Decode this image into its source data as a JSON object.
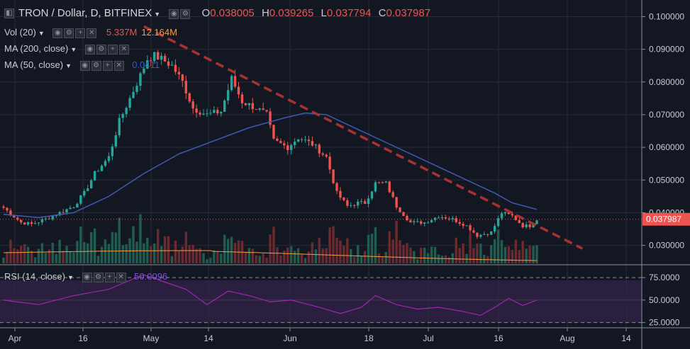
{
  "header": {
    "symbol": "TRON / Dollar, D, BITFINEX",
    "open_label": "O",
    "open": "0.038005",
    "high_label": "H",
    "high": "0.039265",
    "low_label": "L",
    "low": "0.037794",
    "close_label": "C",
    "close": "0.037987"
  },
  "indicators": {
    "vol": {
      "label": "Vol (20)",
      "value1": "5.337M",
      "value2": "12.164M"
    },
    "ma200": {
      "label": "MA (200, close)"
    },
    "ma50": {
      "label": "MA (50, close)",
      "value": "0.0411"
    },
    "rsi": {
      "label": "RSI (14, close)",
      "value": "50.0096"
    }
  },
  "colors": {
    "background": "#131722",
    "up": "#26a69a",
    "down": "#ef5350",
    "ma50": "#3e5bb3",
    "vol_ma": "#f59b42",
    "rsi": "#9c27b0",
    "trendline": "#a83232"
  },
  "chart_data": {
    "type": "candlestick",
    "price_axis": {
      "ticks": [
        "0.100000",
        "0.090000",
        "0.080000",
        "0.070000",
        "0.060000",
        "0.050000",
        "0.040000",
        "0.030000"
      ],
      "tick_values": [
        0.1,
        0.09,
        0.08,
        0.07,
        0.06,
        0.05,
        0.04,
        0.03
      ],
      "range": [
        0.0245,
        0.104
      ]
    },
    "last_price_label": "0.037987",
    "time_axis": {
      "labels": [
        "Apr",
        "16",
        "May",
        "14",
        "Jun",
        "18",
        "Jul",
        "16",
        "Aug",
        "14"
      ]
    },
    "rsi_axis": {
      "ticks": [
        "75.0000",
        "50.0000",
        "25.0000"
      ],
      "tick_values": [
        75,
        50,
        25
      ],
      "range": [
        20,
        83
      ]
    },
    "anchors": [
      [
        0,
        0.0415
      ],
      [
        5,
        0.037
      ],
      [
        8,
        0.0365
      ],
      [
        12,
        0.038
      ],
      [
        16,
        0.04
      ],
      [
        20,
        0.042
      ],
      [
        23,
        0.046
      ],
      [
        26,
        0.052
      ],
      [
        30,
        0.057
      ],
      [
        33,
        0.068
      ],
      [
        36,
        0.075
      ],
      [
        39,
        0.082
      ],
      [
        41,
        0.087
      ],
      [
        43,
        0.088
      ],
      [
        45,
        0.087
      ],
      [
        48,
        0.085
      ],
      [
        51,
        0.08
      ],
      [
        54,
        0.072
      ],
      [
        58,
        0.07
      ],
      [
        62,
        0.071
      ],
      [
        65,
        0.081
      ],
      [
        68,
        0.074
      ],
      [
        72,
        0.072
      ],
      [
        75,
        0.07
      ],
      [
        77,
        0.062
      ],
      [
        81,
        0.06
      ],
      [
        84,
        0.063
      ],
      [
        88,
        0.061
      ],
      [
        92,
        0.057
      ],
      [
        95,
        0.046
      ],
      [
        98,
        0.042
      ],
      [
        101,
        0.043
      ],
      [
        103,
        0.043
      ],
      [
        106,
        0.049
      ],
      [
        109,
        0.049
      ],
      [
        112,
        0.042
      ],
      [
        116,
        0.037
      ],
      [
        120,
        0.037
      ],
      [
        124,
        0.039
      ],
      [
        128,
        0.038
      ],
      [
        132,
        0.036
      ],
      [
        135,
        0.033
      ],
      [
        139,
        0.034
      ],
      [
        142,
        0.04
      ],
      [
        145,
        0.039
      ],
      [
        148,
        0.036
      ],
      [
        150,
        0.036
      ],
      [
        152,
        0.038
      ]
    ],
    "ma50_points": [
      [
        0,
        0.0395
      ],
      [
        10,
        0.0385
      ],
      [
        20,
        0.04
      ],
      [
        30,
        0.045
      ],
      [
        40,
        0.052
      ],
      [
        50,
        0.058
      ],
      [
        60,
        0.062
      ],
      [
        70,
        0.066
      ],
      [
        80,
        0.069
      ],
      [
        86,
        0.0705
      ],
      [
        92,
        0.07
      ],
      [
        100,
        0.066
      ],
      [
        110,
        0.061
      ],
      [
        120,
        0.056
      ],
      [
        130,
        0.051
      ],
      [
        140,
        0.046
      ],
      [
        145,
        0.043
      ],
      [
        152,
        0.041
      ]
    ],
    "trendline": [
      [
        40,
        0.097
      ],
      [
        165,
        0.029
      ]
    ],
    "rsi_points": [
      [
        0,
        50
      ],
      [
        10,
        45
      ],
      [
        20,
        55
      ],
      [
        30,
        62
      ],
      [
        36,
        72
      ],
      [
        40,
        78
      ],
      [
        46,
        70
      ],
      [
        52,
        62
      ],
      [
        58,
        45
      ],
      [
        64,
        60
      ],
      [
        70,
        55
      ],
      [
        76,
        48
      ],
      [
        82,
        50
      ],
      [
        90,
        42
      ],
      [
        96,
        35
      ],
      [
        102,
        42
      ],
      [
        106,
        55
      ],
      [
        112,
        45
      ],
      [
        118,
        40
      ],
      [
        124,
        42
      ],
      [
        130,
        38
      ],
      [
        136,
        33
      ],
      [
        140,
        42
      ],
      [
        144,
        52
      ],
      [
        148,
        44
      ],
      [
        152,
        50
      ]
    ]
  }
}
